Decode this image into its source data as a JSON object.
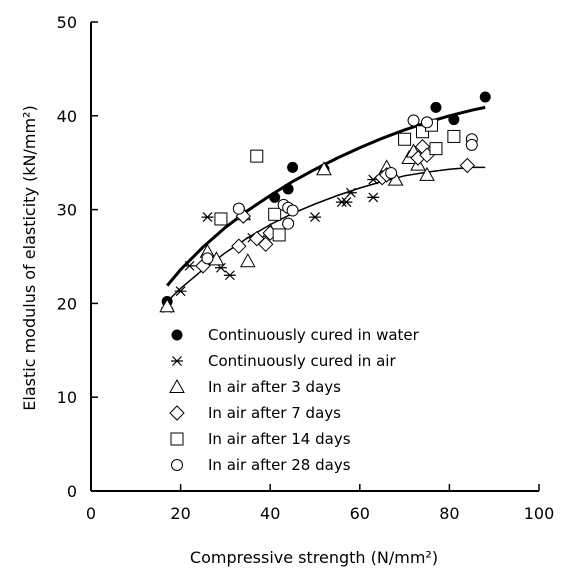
{
  "chart_data": {
    "type": "scatter",
    "xlabel": "Compressive strength (N/mm²)",
    "ylabel": "Elastic modulus of elasticity (kN/mm²)",
    "xlim": [
      0,
      100
    ],
    "ylim": [
      0,
      50
    ],
    "xticks": [
      "0",
      "20",
      "40",
      "60",
      "80",
      "100"
    ],
    "yticks": [
      "0",
      "10",
      "20",
      "30",
      "40",
      "50"
    ],
    "grid": false,
    "legend_position": "bottom-right",
    "series": [
      {
        "name": "Continuously cured in water",
        "marker": "filled-circle",
        "points": [
          [
            17,
            20.2
          ],
          [
            41,
            31.3
          ],
          [
            44,
            32.2
          ],
          [
            45,
            34.5
          ],
          [
            52,
            34.3
          ],
          [
            77,
            40.9
          ],
          [
            81,
            39.6
          ],
          [
            88,
            42.0
          ]
        ]
      },
      {
        "name": "Continuously cured in air",
        "marker": "asterisk",
        "points": [
          [
            17,
            19.5
          ],
          [
            20,
            21.3
          ],
          [
            22,
            24.0
          ],
          [
            26,
            29.2
          ],
          [
            29,
            23.8
          ],
          [
            31,
            23.0
          ],
          [
            36,
            27.0
          ],
          [
            50,
            29.2
          ],
          [
            56,
            30.8
          ],
          [
            57,
            30.8
          ],
          [
            58,
            31.8
          ],
          [
            63,
            31.3
          ],
          [
            63,
            33.2
          ],
          [
            66,
            33.7
          ]
        ]
      },
      {
        "name": "In air after 3 days",
        "marker": "triangle",
        "points": [
          [
            17,
            19.7
          ],
          [
            26,
            25.5
          ],
          [
            28,
            24.7
          ],
          [
            34,
            29.5
          ],
          [
            35,
            24.5
          ],
          [
            40,
            27.7
          ],
          [
            52,
            34.3
          ],
          [
            66,
            34.5
          ],
          [
            68,
            33.2
          ],
          [
            71,
            35.5
          ],
          [
            72,
            36.2
          ],
          [
            73,
            34.8
          ],
          [
            75,
            33.7
          ]
        ]
      },
      {
        "name": "In air after 7 days",
        "marker": "diamond",
        "points": [
          [
            25,
            24.0
          ],
          [
            33,
            26.1
          ],
          [
            34,
            29.3
          ],
          [
            37,
            26.9
          ],
          [
            39,
            26.3
          ],
          [
            40,
            27.5
          ],
          [
            65,
            33.4
          ],
          [
            66,
            33.7
          ],
          [
            73,
            35.5
          ],
          [
            74,
            36.7
          ],
          [
            75,
            35.8
          ],
          [
            84,
            34.7
          ]
        ]
      },
      {
        "name": "In air after 14 days",
        "marker": "square",
        "points": [
          [
            29,
            29.0
          ],
          [
            37,
            35.7
          ],
          [
            41,
            29.5
          ],
          [
            42,
            27.3
          ],
          [
            70,
            37.5
          ],
          [
            74,
            38.3
          ],
          [
            76,
            39.0
          ],
          [
            77,
            36.5
          ],
          [
            81,
            37.8
          ]
        ]
      },
      {
        "name": "In air after 28 days",
        "marker": "open-circle",
        "points": [
          [
            26,
            24.8
          ],
          [
            33,
            30.1
          ],
          [
            43,
            30.5
          ],
          [
            44,
            28.5
          ],
          [
            44,
            30.2
          ],
          [
            45,
            29.9
          ],
          [
            67,
            33.9
          ],
          [
            72,
            39.5
          ],
          [
            75,
            39.3
          ],
          [
            85,
            37.5
          ],
          [
            85,
            36.9
          ]
        ]
      }
    ],
    "trendlines": [
      {
        "style": "thick",
        "points": [
          [
            17,
            21.9
          ],
          [
            20,
            23.6
          ],
          [
            25,
            26.0
          ],
          [
            30,
            28.1
          ],
          [
            35,
            29.9
          ],
          [
            40,
            31.5
          ],
          [
            45,
            33.0
          ],
          [
            50,
            34.3
          ],
          [
            55,
            35.5
          ],
          [
            60,
            36.6
          ],
          [
            65,
            37.6
          ],
          [
            70,
            38.5
          ],
          [
            75,
            39.3
          ],
          [
            80,
            40.0
          ],
          [
            85,
            40.6
          ],
          [
            88,
            40.9
          ]
        ]
      },
      {
        "style": "thin",
        "points": [
          [
            17,
            20.2
          ],
          [
            20,
            21.6
          ],
          [
            25,
            23.6
          ],
          [
            30,
            25.4
          ],
          [
            35,
            27.0
          ],
          [
            40,
            28.4
          ],
          [
            45,
            29.6
          ],
          [
            50,
            30.6
          ],
          [
            55,
            31.5
          ],
          [
            60,
            32.3
          ],
          [
            65,
            33.0
          ],
          [
            70,
            33.6
          ],
          [
            75,
            34.0
          ],
          [
            80,
            34.3
          ],
          [
            85,
            34.5
          ],
          [
            88,
            34.5
          ]
        ]
      }
    ]
  }
}
